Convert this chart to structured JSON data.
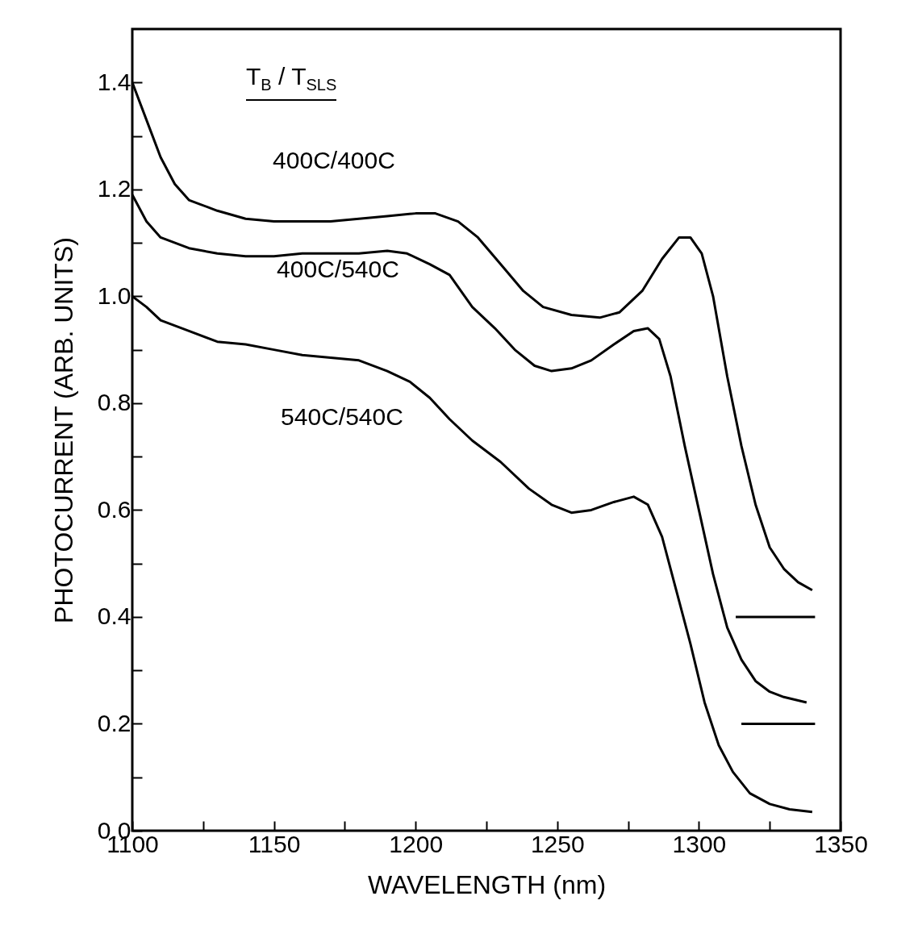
{
  "chart_data": {
    "type": "line",
    "xlabel": "WAVELENGTH  (nm)",
    "ylabel": "PHOTOCURRENT  (ARB. UNITS)",
    "annotations": [
      "T$_{B}$ / T$_{SLS}$"
    ],
    "xlim": [
      1100,
      1350
    ],
    "ylim": [
      0,
      1.5
    ],
    "xticks": [
      1100,
      {
        "value": 1125,
        "label": null
      },
      1150,
      {
        "value": 1175,
        "label": null
      },
      1200,
      {
        "value": 1225,
        "label": null
      },
      1250,
      {
        "value": 1275,
        "label": null
      },
      1300,
      {
        "value": 1325,
        "label": null
      },
      1350
    ],
    "yticks": [
      {
        "value": 0,
        "label": "0.0"
      },
      {
        "value": 0.1,
        "label": null
      },
      0.2,
      {
        "value": 0.3,
        "label": null
      },
      0.4,
      {
        "value": 0.5,
        "label": null
      },
      0.6,
      {
        "value": 0.7,
        "label": null
      },
      0.8,
      {
        "value": 0.9,
        "label": null
      },
      {
        "value": 1.0,
        "label": "1.0"
      },
      {
        "value": 1.1,
        "label": null
      },
      1.2,
      {
        "value": 1.3,
        "label": null
      },
      1.4
    ],
    "grid": false,
    "legend": false,
    "line_style": "solid",
    "series": [
      {
        "name": "400C/400C",
        "color": "#000000",
        "x": [
          1100,
          1105,
          1110,
          1115,
          1120,
          1130,
          1140,
          1150,
          1160,
          1170,
          1180,
          1190,
          1200,
          1207,
          1215,
          1222,
          1230,
          1238,
          1245,
          1255,
          1265,
          1272,
          1280,
          1287,
          1293,
          1297,
          1301,
          1305,
          1310,
          1315,
          1320,
          1325,
          1330,
          1335,
          1340
        ],
        "values": [
          1.4,
          1.33,
          1.26,
          1.21,
          1.18,
          1.16,
          1.145,
          1.14,
          1.14,
          1.14,
          1.145,
          1.15,
          1.155,
          1.155,
          1.14,
          1.11,
          1.06,
          1.01,
          0.98,
          0.965,
          0.96,
          0.97,
          1.01,
          1.07,
          1.11,
          1.11,
          1.08,
          1.0,
          0.85,
          0.72,
          0.61,
          0.53,
          0.49,
          0.465,
          0.45
        ]
      },
      {
        "name": "400C/540C",
        "color": "#000000",
        "x": [
          1100,
          1105,
          1110,
          1120,
          1130,
          1140,
          1150,
          1160,
          1170,
          1180,
          1190,
          1197,
          1205,
          1212,
          1220,
          1228,
          1235,
          1242,
          1248,
          1255,
          1262,
          1270,
          1277,
          1282,
          1286,
          1290,
          1295,
          1300,
          1305,
          1310,
          1315,
          1320,
          1325,
          1330,
          1338
        ],
        "values": [
          1.19,
          1.14,
          1.11,
          1.09,
          1.08,
          1.075,
          1.075,
          1.08,
          1.08,
          1.08,
          1.085,
          1.08,
          1.06,
          1.04,
          0.98,
          0.94,
          0.9,
          0.87,
          0.86,
          0.865,
          0.88,
          0.91,
          0.935,
          0.94,
          0.92,
          0.85,
          0.72,
          0.6,
          0.48,
          0.38,
          0.32,
          0.28,
          0.26,
          0.25,
          0.24
        ]
      },
      {
        "name": "540C/540C",
        "color": "#000000",
        "x": [
          1100,
          1105,
          1110,
          1120,
          1130,
          1140,
          1150,
          1160,
          1170,
          1180,
          1190,
          1198,
          1205,
          1212,
          1220,
          1230,
          1240,
          1248,
          1255,
          1262,
          1270,
          1277,
          1282,
          1287,
          1292,
          1297,
          1302,
          1307,
          1312,
          1318,
          1325,
          1332,
          1340
        ],
        "values": [
          1.0,
          0.98,
          0.955,
          0.935,
          0.915,
          0.91,
          0.9,
          0.89,
          0.885,
          0.88,
          0.86,
          0.84,
          0.81,
          0.77,
          0.73,
          0.69,
          0.64,
          0.61,
          0.595,
          0.6,
          0.615,
          0.625,
          0.61,
          0.55,
          0.45,
          0.35,
          0.24,
          0.16,
          0.11,
          0.07,
          0.05,
          0.04,
          0.035
        ]
      },
      {
        "color": "#000000",
        "x": [
          1313,
          1341
        ],
        "values": [
          0.4,
          0.4
        ]
      },
      {
        "color": "#000000",
        "x": [
          1315,
          1341
        ],
        "values": [
          0.2,
          0.2
        ]
      }
    ]
  }
}
